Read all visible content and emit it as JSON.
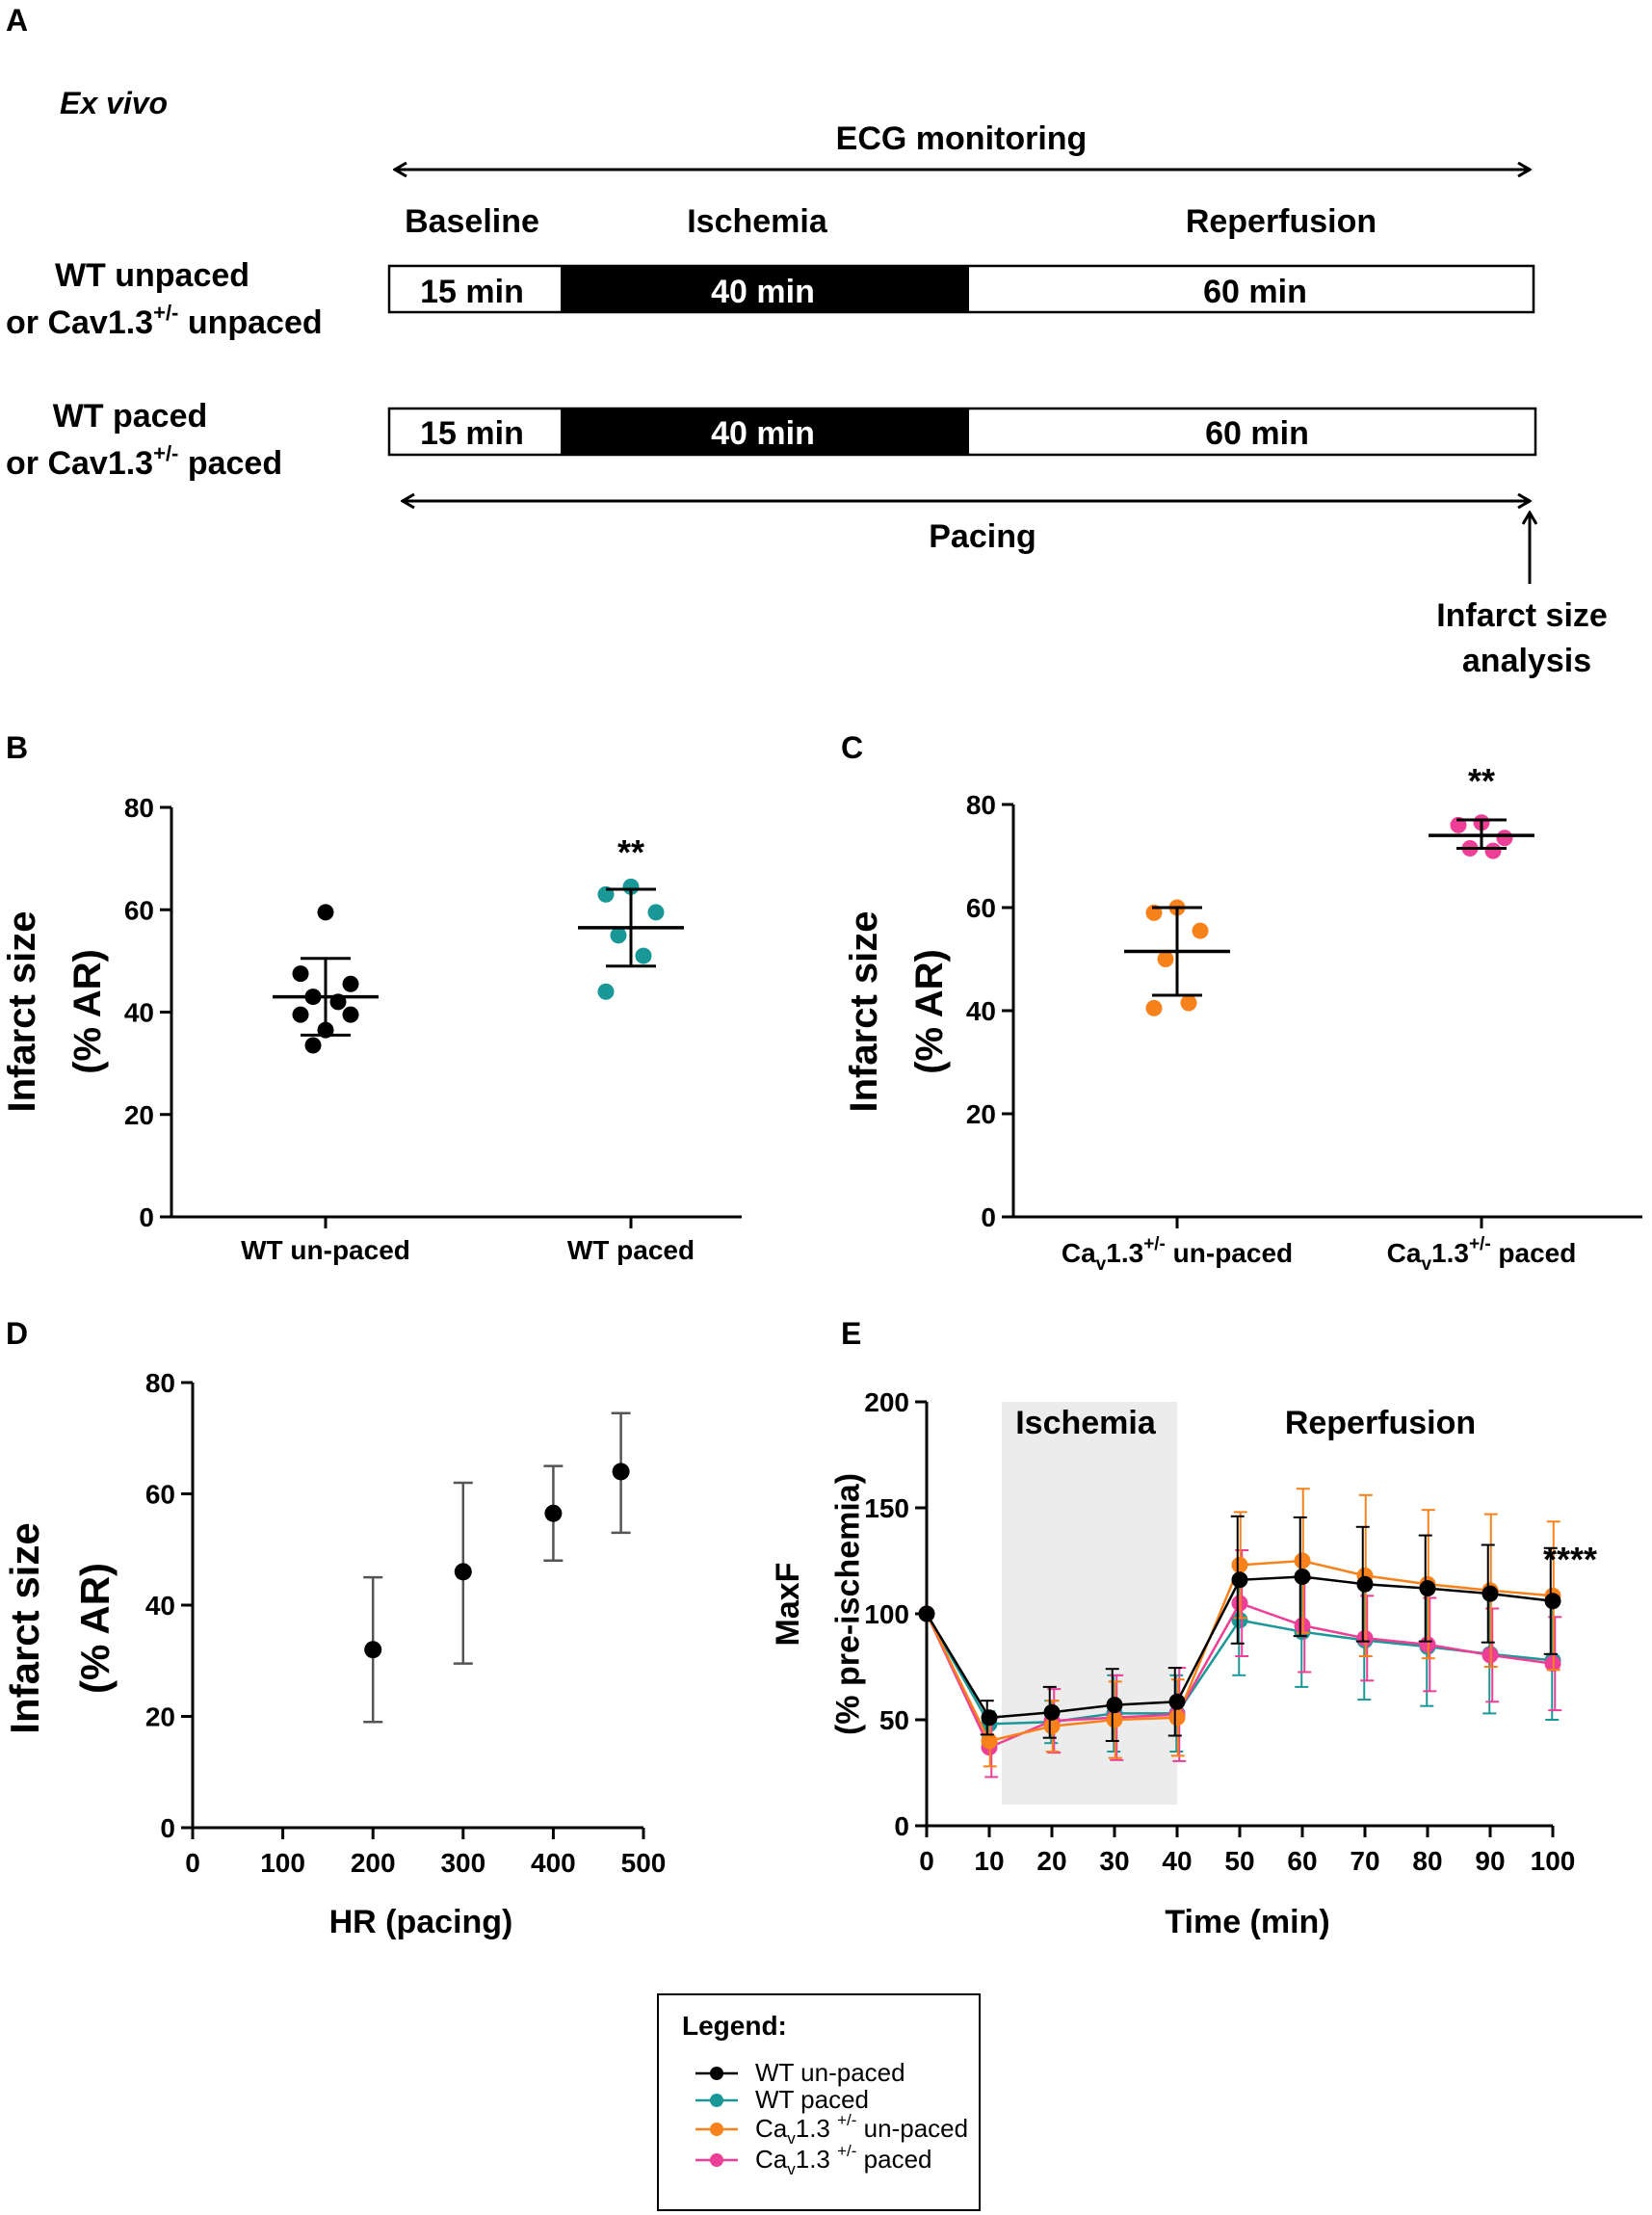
{
  "panel_labels": {
    "a": "A",
    "b": "B",
    "c": "C",
    "d": "D",
    "e": "E"
  },
  "protocol": {
    "mode": "Ex vivo",
    "ecg_label": "ECG monitoring",
    "phases": [
      "Baseline",
      "Ischemia",
      "Reperfusion"
    ],
    "row1_label_line1": "WT unpaced",
    "row1_label_line2_pre": "or Cav1.3",
    "row1_label_line2_sup": "+/-",
    "row1_label_line2_post": " unpaced",
    "row2_label_line1": "WT paced",
    "row2_label_line2_pre": "or Cav1.3",
    "row2_label_line2_sup": "+/-",
    "row2_label_line2_post": " paced",
    "segment_labels": [
      "15 min",
      "40 min",
      "60 min"
    ],
    "pacing_label": "Pacing",
    "analysis_line1": "Infarct size",
    "analysis_line2": "analysis"
  },
  "colors": {
    "wt_unpaced": "#000000",
    "wt_paced": "#1a9898",
    "cav_unpaced": "#f7821b",
    "cav_paced": "#ec3f95",
    "ischemia_shade": "#ececec"
  },
  "chart_data": [
    {
      "id": "B",
      "type": "scatter",
      "ylabel_line1": "Infarct size",
      "ylabel_line2": "(% AR)",
      "ylim": [
        0,
        80
      ],
      "yticks": [
        "0",
        "20",
        "40",
        "60",
        "80"
      ],
      "categories": [
        "WT un-paced",
        "WT paced"
      ],
      "series": [
        {
          "name": "WT un-paced",
          "points": [
            59.5,
            47.5,
            45.5,
            43,
            42,
            39.5,
            39.5,
            36.5,
            33.5
          ],
          "mean": 43,
          "sd_low": 35.5,
          "sd_high": 50.5
        },
        {
          "name": "WT paced",
          "points": [
            64.5,
            63,
            59.5,
            55,
            51,
            44
          ],
          "mean": 56.5,
          "sd_low": 49,
          "sd_high": 64
        }
      ],
      "annotation": "**"
    },
    {
      "id": "C",
      "type": "scatter",
      "ylabel_line1": "Infarct size",
      "ylabel_line2": "(% AR)",
      "ylim": [
        0,
        80
      ],
      "yticks": [
        "0",
        "20",
        "40",
        "60",
        "80"
      ],
      "categories": [
        "un-paced",
        "paced"
      ],
      "category_prefix": "Ca",
      "category_sub": "v",
      "category_mid": "1.3",
      "category_sup": "+/-",
      "series": [
        {
          "name": "Cav1.3+/- un-paced",
          "points": [
            60,
            59,
            55.5,
            50,
            41.5,
            40.5
          ],
          "mean": 51.5,
          "sd_low": 43,
          "sd_high": 60
        },
        {
          "name": "Cav1.3+/- paced",
          "points": [
            76.5,
            76,
            73.5,
            71.5,
            71
          ],
          "mean": 74,
          "sd_low": 71.5,
          "sd_high": 77
        }
      ],
      "annotation": "**"
    },
    {
      "id": "D",
      "type": "scatter",
      "ylabel_line1": "Infarct size",
      "ylabel_line2": "(% AR)",
      "xlabel": "HR (pacing)",
      "xlim": [
        0,
        500
      ],
      "ylim": [
        0,
        80
      ],
      "xticks": [
        "0",
        "100",
        "200",
        "300",
        "400",
        "500"
      ],
      "yticks": [
        "0",
        "20",
        "40",
        "60",
        "80"
      ],
      "points": [
        {
          "x": 200,
          "y": 32,
          "low": 19,
          "high": 45
        },
        {
          "x": 300,
          "y": 46,
          "low": 29.5,
          "high": 62
        },
        {
          "x": 400,
          "y": 56.5,
          "low": 48,
          "high": 65
        },
        {
          "x": 475,
          "y": 64,
          "low": 53,
          "high": 74.5
        }
      ]
    },
    {
      "id": "E",
      "type": "line",
      "ylabel_line1": "MaxF",
      "ylabel_line2": "(% pre-ischemia)",
      "xlabel": "Time (min)",
      "xlim": [
        0,
        100
      ],
      "ylim": [
        0,
        200
      ],
      "xticks": [
        "0",
        "10",
        "20",
        "30",
        "40",
        "50",
        "60",
        "70",
        "80",
        "90",
        "100"
      ],
      "yticks": [
        "0",
        "50",
        "100",
        "150",
        "200"
      ],
      "ischemia_label": "Ischemia",
      "ischemia_range": [
        12,
        40
      ],
      "reperfusion_label": "Reperfusion",
      "annotation": "****",
      "x": [
        0,
        10,
        20,
        30,
        40,
        50,
        60,
        70,
        80,
        90,
        100
      ],
      "series": [
        {
          "name": "WT un-paced",
          "values": [
            100,
            51,
            53.5,
            57,
            58.5,
            116,
            117.5,
            114,
            112,
            109.5,
            106
          ],
          "err": [
            0,
            8,
            12,
            17,
            16,
            30,
            28,
            27,
            25,
            23,
            25
          ]
        },
        {
          "name": "WT paced",
          "values": [
            100,
            48,
            49,
            53,
            53,
            97,
            91.5,
            87.5,
            84.5,
            81,
            78
          ],
          "err": [
            0,
            6,
            10,
            18,
            18,
            26,
            26,
            28,
            28,
            28,
            28
          ]
        },
        {
          "name": "Cav1.3 +/- un-paced",
          "values": [
            100,
            40,
            47,
            50,
            51,
            123,
            125,
            118,
            114,
            111,
            108.5
          ],
          "err": [
            0,
            12,
            12,
            18,
            18,
            25,
            34,
            38,
            35,
            36,
            35
          ]
        },
        {
          "name": "Cav1.3 +/- paced",
          "values": [
            100,
            37,
            49.5,
            51,
            52.5,
            105,
            94.5,
            88.5,
            85.5,
            80.5,
            76.5
          ],
          "err": [
            0,
            14,
            15,
            20,
            22,
            25,
            22,
            20,
            22,
            22,
            22
          ]
        }
      ]
    }
  ],
  "legend": {
    "title": "Legend:",
    "items": [
      {
        "pre": "WT un-paced",
        "sub": "",
        "mid": "",
        "sup": "",
        "post": ""
      },
      {
        "pre": "WT paced",
        "sub": "",
        "mid": "",
        "sup": "",
        "post": ""
      },
      {
        "pre": "Ca",
        "sub": "v",
        "mid": "1.3 ",
        "sup": "+/-",
        "post": " un-paced"
      },
      {
        "pre": "Ca",
        "sub": "v",
        "mid": "1.3 ",
        "sup": "+/-",
        "post": " paced"
      }
    ]
  }
}
